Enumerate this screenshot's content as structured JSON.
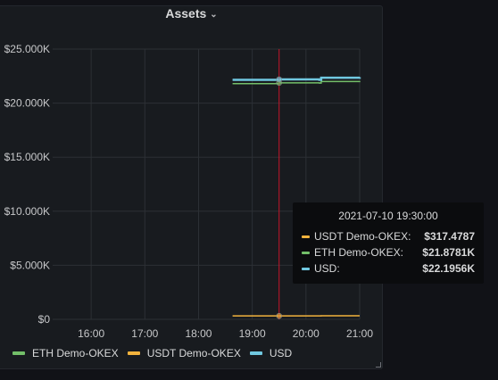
{
  "panel": {
    "title": "Assets"
  },
  "colors": {
    "eth": "#73bf69",
    "usdt": "#f2b33d",
    "usd": "#70c8e0",
    "crosshair": "#c4162a",
    "grid": "#2c3035",
    "axis_text": "#c7c8ca"
  },
  "chart_data": {
    "type": "line",
    "y_tick_labels": [
      "$25.000K",
      "$20.000K",
      "$15.000K",
      "$10.000K",
      "$5.000K",
      "$0"
    ],
    "y_tick_values": [
      25000,
      20000,
      15000,
      10000,
      5000,
      0
    ],
    "x_tick_labels": [
      "16:00",
      "17:00",
      "18:00",
      "19:00",
      "20:00",
      "21:00"
    ],
    "x_tick_values": [
      "16:00",
      "17:00",
      "18:00",
      "19:00",
      "20:00",
      "21:00"
    ],
    "x_range": [
      "15:17",
      "21:00"
    ],
    "ylim": [
      0,
      25000
    ],
    "grid": true,
    "legend_position": "bottom-left",
    "crosshair_x": "19:30",
    "series": [
      {
        "name": "ETH Demo-OKEX",
        "color_key": "eth",
        "x": [
          "18:38",
          "19:30",
          "20:15",
          "20:17",
          "21:00"
        ],
        "y": [
          21800,
          21878.1,
          21850,
          22000,
          22050
        ]
      },
      {
        "name": "USDT Demo-OKEX",
        "color_key": "usdt",
        "x": [
          "18:38",
          "19:30",
          "20:15",
          "20:17",
          "21:00"
        ],
        "y": [
          317,
          317.4787,
          317,
          330,
          330
        ]
      },
      {
        "name": "USD",
        "color_key": "usd",
        "x": [
          "18:38",
          "19:30",
          "20:15",
          "20:17",
          "21:00"
        ],
        "y": [
          22150,
          22195.6,
          22150,
          22350,
          22400
        ]
      }
    ]
  },
  "legend": [
    {
      "label": "ETH Demo-OKEX",
      "color_key": "eth"
    },
    {
      "label": "USDT Demo-OKEX",
      "color_key": "usdt"
    },
    {
      "label": "USD",
      "color_key": "usd"
    }
  ],
  "tooltip": {
    "time": "2021-07-10 19:30:00",
    "rows": [
      {
        "name": "USDT Demo-OKEX:",
        "value": "$317.4787",
        "color_key": "usdt"
      },
      {
        "name": "ETH Demo-OKEX:",
        "value": "$21.8781K",
        "color_key": "eth"
      },
      {
        "name": "USD:",
        "value": "$22.1956K",
        "color_key": "usd"
      }
    ]
  }
}
